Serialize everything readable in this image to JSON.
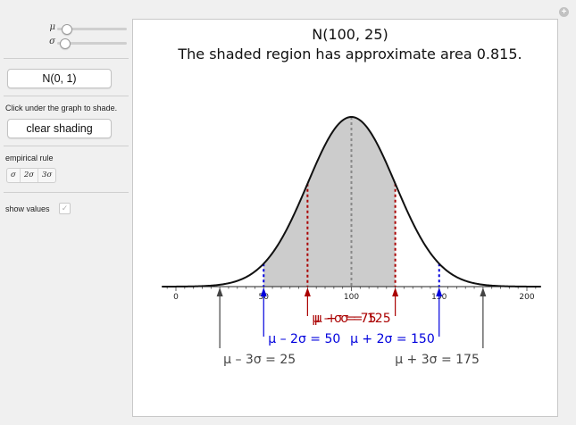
{
  "controls": {
    "mu_label": "μ",
    "sigma_label": "σ",
    "mu_slider_fraction": 0.08,
    "sigma_slider_fraction": 0.04,
    "standard_button_label": "N(0, 1)",
    "instruction_text": "Click under the graph to shade.",
    "clear_button_label": "clear shading",
    "empirical_rule_label": "empirical rule",
    "empirical_rule_options": [
      "σ",
      "2σ",
      "3σ"
    ],
    "show_values_label": "show values",
    "show_values_checked": true
  },
  "plot": {
    "title_line1": "N(100, 25)",
    "title_line2": "The shaded region has approximate area 0.815."
  },
  "chart_data": {
    "type": "area",
    "distribution": {
      "mean": 100,
      "sd": 25
    },
    "xlim": [
      0,
      200
    ],
    "x_ticks": [
      0,
      50,
      100,
      150,
      200
    ],
    "x_tick_labels": [
      "0",
      "50",
      "100",
      "150",
      "200"
    ],
    "shaded_interval": [
      50,
      125
    ],
    "shaded_area": 0.815,
    "markers": [
      {
        "label": "μ – σ = 75",
        "x": 75,
        "color": "#aa0000"
      },
      {
        "label": "μ + σ = 125",
        "x": 125,
        "color": "#aa0000"
      },
      {
        "label": "μ – 2σ = 50",
        "x": 50,
        "color": "#0000dd"
      },
      {
        "label": "μ + 2σ = 150",
        "x": 150,
        "color": "#0000dd"
      },
      {
        "label": "μ – 3σ = 25",
        "x": 25,
        "color": "#444444"
      },
      {
        "label": "μ + 3σ = 175",
        "x": 175,
        "color": "#444444"
      }
    ],
    "mean_line_color": "#888888",
    "shade_color": "#cccccc",
    "curve_color": "#111111"
  }
}
